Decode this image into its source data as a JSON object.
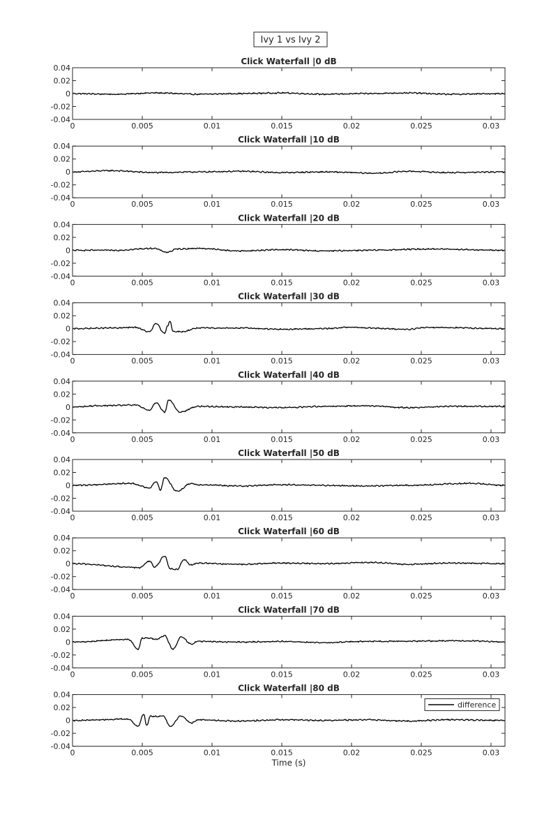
{
  "figure_title": "Ivy 1 vs Ivy 2",
  "colors": {
    "line": "#000000",
    "axis": "#262626",
    "background": "#ffffff"
  },
  "chart_data": [
    {
      "type": "line",
      "title": "Click Waterfall |0 dB",
      "xlabel": "",
      "ylabel": "",
      "xlim": [
        0,
        0.031
      ],
      "ylim": [
        -0.04,
        0.04
      ],
      "xticks": [
        "0",
        "0.005",
        "0.01",
        "0.015",
        "0.02",
        "0.025",
        "0.03"
      ],
      "yticks": [
        "0.04",
        "0.02",
        "0",
        "-0.02",
        "-0.04"
      ],
      "grid": false,
      "series": [
        {
          "x": [
            0,
            0.003,
            0.006,
            0.009,
            0.012,
            0.015,
            0.018,
            0.021,
            0.024,
            0.027,
            0.031
          ],
          "y": [
            0,
            -0.001,
            0.001,
            -0.001,
            0,
            0.001,
            -0.001,
            0,
            0.001,
            -0.001,
            0
          ]
        }
      ]
    },
    {
      "type": "line",
      "title": "Click Waterfall |10 dB",
      "xlabel": "",
      "ylabel": "",
      "xlim": [
        0,
        0.031
      ],
      "ylim": [
        -0.04,
        0.04
      ],
      "xticks": [
        "0",
        "0.005",
        "0.01",
        "0.015",
        "0.02",
        "0.025",
        "0.03"
      ],
      "yticks": [
        "0.04",
        "0.02",
        "0",
        "-0.02",
        "-0.04"
      ],
      "grid": false,
      "series": [
        {
          "x": [
            0,
            0.0027,
            0.006,
            0.009,
            0.012,
            0.015,
            0.018,
            0.0218,
            0.024,
            0.027,
            0.031
          ],
          "y": [
            0,
            0.002,
            -0.001,
            0,
            0.001,
            -0.001,
            0,
            -0.002,
            0.001,
            -0.001,
            0
          ]
        }
      ]
    },
    {
      "type": "line",
      "title": "Click Waterfall |20 dB",
      "xlabel": "",
      "ylabel": "",
      "xlim": [
        0,
        0.031
      ],
      "ylim": [
        -0.04,
        0.04
      ],
      "xticks": [
        "0",
        "0.005",
        "0.01",
        "0.015",
        "0.02",
        "0.025",
        "0.03"
      ],
      "yticks": [
        "0.04",
        "0.02",
        "0",
        "-0.02",
        "-0.04"
      ],
      "grid": false,
      "series": [
        {
          "x": [
            0,
            0.003,
            0.0058,
            0.0068,
            0.0075,
            0.009,
            0.012,
            0.015,
            0.018,
            0.021,
            0.0258,
            0.031
          ],
          "y": [
            0,
            0,
            0.003,
            -0.003,
            0.002,
            0.003,
            -0.001,
            0.001,
            -0.001,
            0,
            0.002,
            0
          ]
        }
      ]
    },
    {
      "type": "line",
      "title": "Click Waterfall |30 dB",
      "xlabel": "",
      "ylabel": "",
      "xlim": [
        0,
        0.031
      ],
      "ylim": [
        -0.04,
        0.04
      ],
      "xticks": [
        "0",
        "0.005",
        "0.01",
        "0.015",
        "0.02",
        "0.025",
        "0.03"
      ],
      "yticks": [
        "0.04",
        "0.02",
        "0",
        "-0.02",
        "-0.04"
      ],
      "grid": false,
      "series": [
        {
          "x": [
            0,
            0.003,
            0.0045,
            0.0055,
            0.006,
            0.0066,
            0.0068,
            0.007,
            0.0072,
            0.0078,
            0.009,
            0.012,
            0.015,
            0.018,
            0.0198,
            0.024,
            0.0255,
            0.031
          ],
          "y": [
            0,
            0.001,
            0.002,
            -0.005,
            0.008,
            -0.008,
            0.004,
            0.011,
            -0.004,
            -0.005,
            0.001,
            0.001,
            -0.001,
            0,
            0.002,
            -0.001,
            0.002,
            0
          ]
        }
      ]
    },
    {
      "type": "line",
      "title": "Click Waterfall |40 dB",
      "xlabel": "",
      "ylabel": "",
      "xlim": [
        0,
        0.031
      ],
      "ylim": [
        -0.04,
        0.04
      ],
      "xticks": [
        "0",
        "0.005",
        "0.01",
        "0.015",
        "0.02",
        "0.025",
        "0.03"
      ],
      "yticks": [
        "0.04",
        "0.02",
        "0",
        "-0.02",
        "-0.04"
      ],
      "grid": false,
      "series": [
        {
          "x": [
            0,
            0.002,
            0.0045,
            0.0055,
            0.006,
            0.0066,
            0.0069,
            0.0077,
            0.009,
            0.012,
            0.015,
            0.018,
            0.021,
            0.024,
            0.027,
            0.031
          ],
          "y": [
            0,
            0.002,
            0.003,
            -0.005,
            0.007,
            -0.008,
            0.011,
            -0.008,
            0.001,
            0,
            -0.001,
            0.001,
            0.002,
            -0.001,
            0.001,
            0.001
          ]
        }
      ]
    },
    {
      "type": "line",
      "title": "Click Waterfall |50 dB",
      "xlabel": "",
      "ylabel": "",
      "xlim": [
        0,
        0.031
      ],
      "ylim": [
        -0.04,
        0.04
      ],
      "xticks": [
        "0",
        "0.005",
        "0.01",
        "0.015",
        "0.02",
        "0.025",
        "0.03"
      ],
      "yticks": [
        "0.04",
        "0.02",
        "0",
        "-0.02",
        "-0.04"
      ],
      "grid": false,
      "series": [
        {
          "x": [
            0,
            0.0042,
            0.0055,
            0.006,
            0.0063,
            0.0066,
            0.0075,
            0.0085,
            0.009,
            0.012,
            0.015,
            0.018,
            0.021,
            0.024,
            0.0285,
            0.031
          ],
          "y": [
            0,
            0.003,
            -0.004,
            0.006,
            -0.007,
            0.012,
            -0.009,
            0.003,
            0.001,
            -0.001,
            0.001,
            0,
            -0.001,
            0,
            0.003,
            0
          ]
        }
      ]
    },
    {
      "type": "line",
      "title": "Click Waterfall |60 dB",
      "xlabel": "",
      "ylabel": "",
      "xlim": [
        0,
        0.031
      ],
      "ylim": [
        -0.04,
        0.04
      ],
      "xticks": [
        "0",
        "0.005",
        "0.01",
        "0.015",
        "0.02",
        "0.025",
        "0.03"
      ],
      "yticks": [
        "0.04",
        "0.02",
        "0",
        "-0.02",
        "-0.04"
      ],
      "grid": false,
      "series": [
        {
          "x": [
            0,
            0.0048,
            0.0055,
            0.0059,
            0.0066,
            0.007,
            0.0075,
            0.008,
            0.0085,
            0.009,
            0.012,
            0.015,
            0.018,
            0.0215,
            0.024,
            0.027,
            0.031
          ],
          "y": [
            0,
            -0.006,
            0.004,
            -0.005,
            0.012,
            -0.008,
            -0.009,
            0.006,
            -0.002,
            0.001,
            -0.001,
            0.001,
            0,
            0.002,
            -0.001,
            0.001,
            0
          ]
        }
      ]
    },
    {
      "type": "line",
      "title": "Click Waterfall |70 dB",
      "xlabel": "",
      "ylabel": "",
      "xlim": [
        0,
        0.031
      ],
      "ylim": [
        -0.04,
        0.04
      ],
      "xticks": [
        "0",
        "0.005",
        "0.01",
        "0.015",
        "0.02",
        "0.025",
        "0.03"
      ],
      "yticks": [
        "0.04",
        "0.02",
        "0",
        "-0.02",
        "-0.04"
      ],
      "grid": false,
      "series": [
        {
          "x": [
            0,
            0.004,
            0.0047,
            0.005,
            0.0055,
            0.006,
            0.0066,
            0.0072,
            0.0078,
            0.0085,
            0.009,
            0.012,
            0.015,
            0.018,
            0.021,
            0.0285,
            0.031
          ],
          "y": [
            0,
            0.004,
            -0.011,
            0.006,
            0.006,
            0.004,
            0.01,
            -0.011,
            0.008,
            -0.003,
            0.001,
            0,
            0.001,
            -0.001,
            0.001,
            0.002,
            0
          ]
        }
      ]
    },
    {
      "type": "line",
      "title": "Click Waterfall |80 dB",
      "xlabel": "Time (s)",
      "ylabel": "",
      "xlim": [
        0,
        0.031
      ],
      "ylim": [
        -0.04,
        0.04
      ],
      "xticks": [
        "0",
        "0.005",
        "0.01",
        "0.015",
        "0.02",
        "0.025",
        "0.03"
      ],
      "yticks": [
        "0.04",
        "0.02",
        "0",
        "-0.02",
        "-0.04"
      ],
      "grid": false,
      "legend": {
        "entries": [
          "difference"
        ],
        "position": "top-right"
      },
      "series": [
        {
          "name": "difference",
          "x": [
            0,
            0.004,
            0.0047,
            0.0051,
            0.0053,
            0.0056,
            0.006,
            0.0065,
            0.007,
            0.0078,
            0.0085,
            0.009,
            0.012,
            0.015,
            0.018,
            0.021,
            0.024,
            0.027,
            0.031
          ],
          "y": [
            0,
            0.002,
            -0.009,
            0.01,
            -0.008,
            0.007,
            0.006,
            0.007,
            -0.009,
            0.007,
            -0.004,
            0.001,
            -0.001,
            0.001,
            0,
            0.001,
            -0.001,
            0.001,
            0
          ]
        }
      ]
    }
  ]
}
